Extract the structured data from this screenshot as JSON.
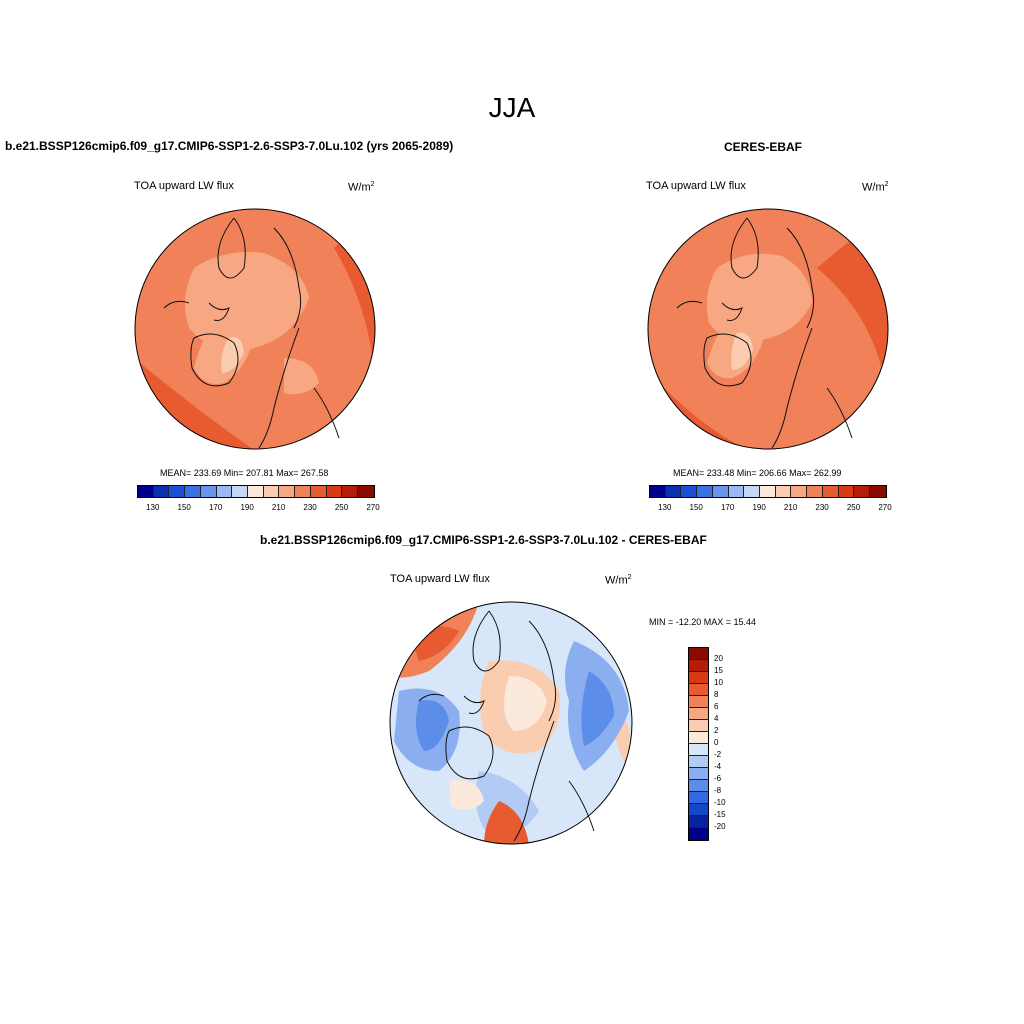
{
  "season": "JJA",
  "panels": [
    {
      "case_title": "b.e21.BSSP126cmip6.f09_g17.CMIP6-SSP1-2.6-SSP3-7.0Lu.102 (yrs 2065-2089)",
      "variable": "TOA upward LW flux",
      "units_base": "W/m",
      "units_exp": "2",
      "stats": "MEAN= 233.69  Min= 207.81  Max= 267.58"
    },
    {
      "case_title": "CERES-EBAF",
      "variable": "TOA upward LW flux",
      "units_base": "W/m",
      "units_exp": "2",
      "stats": "MEAN= 233.48  Min= 206.66  Max= 262.99"
    }
  ],
  "diff_panel": {
    "title": "b.e21.BSSP126cmip6.f09_g17.CMIP6-SSP1-2.6-SSP3-7.0Lu.102 - CERES-EBAF",
    "variable": "TOA upward LW flux",
    "units_base": "W/m",
    "units_exp": "2",
    "minmax": "MIN = -12.20 MAX =  15.44"
  },
  "abs_colorbar": {
    "colors": [
      "#00008b",
      "#0a2fb0",
      "#1a4fd6",
      "#3a6fe6",
      "#6a94ee",
      "#9bb8f3",
      "#c6d8f8",
      "#fbe9dc",
      "#fbcdb0",
      "#f7a882",
      "#f08158",
      "#e85a30",
      "#d93a12",
      "#b51d08",
      "#8b0a00"
    ],
    "labels": [
      "130",
      "150",
      "170",
      "190",
      "210",
      "230",
      "250",
      "270"
    ]
  },
  "diff_colorbar": {
    "colors": [
      "#8b0a00",
      "#b51d08",
      "#d93a12",
      "#e85a30",
      "#f08158",
      "#f7a882",
      "#fbcdb0",
      "#fbe9dc",
      "#d8e6fa",
      "#b2cbf5",
      "#8aaef0",
      "#5c8de9",
      "#3269e0",
      "#1446c8",
      "#08239e",
      "#00008b"
    ],
    "labels": [
      "20",
      "15",
      "10",
      "8",
      "6",
      "4",
      "2",
      "0",
      "-2",
      "-4",
      "-6",
      "-8",
      "-10",
      "-15",
      "-20"
    ]
  }
}
